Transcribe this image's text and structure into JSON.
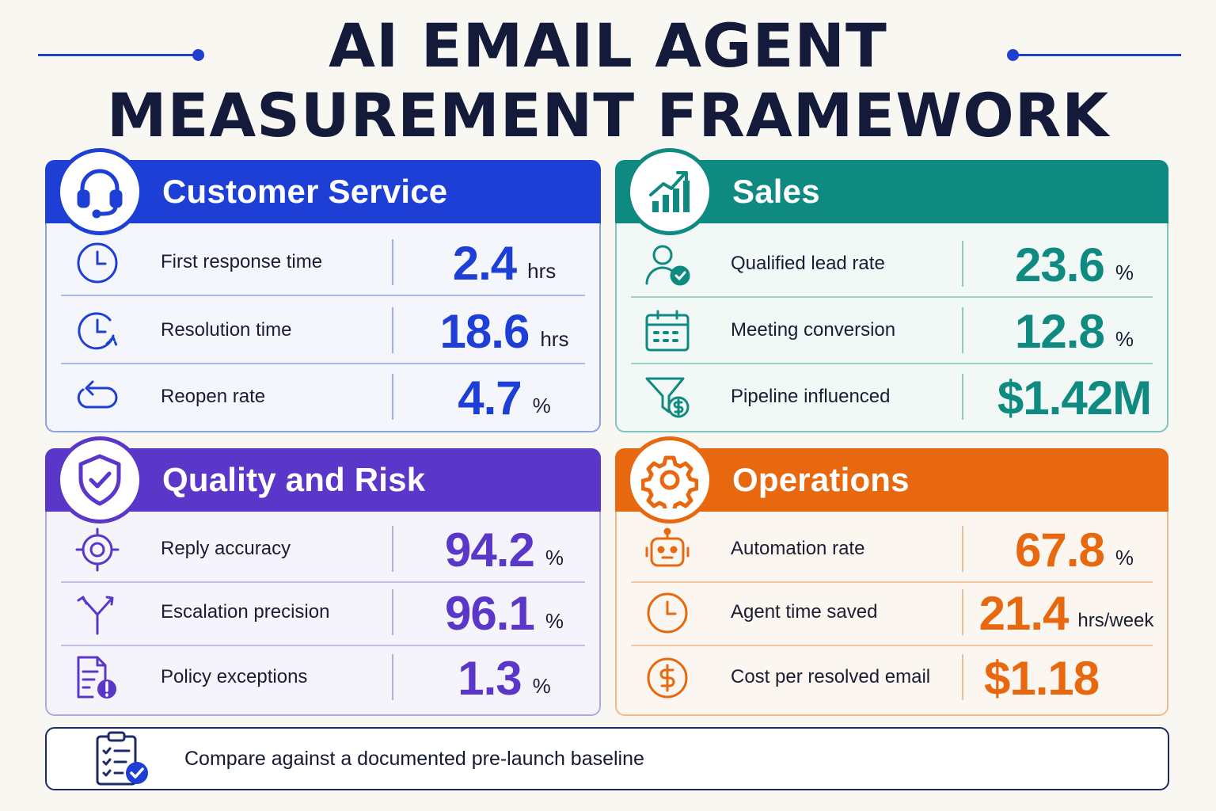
{
  "title": {
    "line1": "AI EMAIL AGENT",
    "line2": "MEASUREMENT FRAMEWORK"
  },
  "colors": {
    "customer_service": "#1e3fd6",
    "sales": "#0f8a80",
    "quality_risk": "#5a36c9",
    "operations": "#e8680f"
  },
  "panels": {
    "customer_service": {
      "title": "Customer Service",
      "icon": "headset-icon",
      "metrics": [
        {
          "label": "First response time",
          "value": "2.4",
          "unit": "hrs",
          "icon": "clock-icon"
        },
        {
          "label": "Resolution time",
          "value": "18.6",
          "unit": "hrs",
          "icon": "clock-arrow-icon"
        },
        {
          "label": "Reopen rate",
          "value": "4.7",
          "unit": "%",
          "icon": "reopen-arrow-icon"
        }
      ]
    },
    "sales": {
      "title": "Sales",
      "icon": "bar-chart-growth-icon",
      "metrics": [
        {
          "label": "Qualified lead rate",
          "value": "23.6",
          "unit": "%",
          "icon": "user-check-icon"
        },
        {
          "label": "Meeting conversion",
          "value": "12.8",
          "unit": "%",
          "icon": "calendar-icon"
        },
        {
          "label": "Pipeline influenced",
          "value": "$1.42M",
          "unit": "",
          "icon": "funnel-dollar-icon"
        }
      ]
    },
    "quality_risk": {
      "title": "Quality and Risk",
      "icon": "shield-check-icon",
      "metrics": [
        {
          "label": "Reply accuracy",
          "value": "94.2",
          "unit": "%",
          "icon": "target-icon"
        },
        {
          "label": "Escalation precision",
          "value": "96.1",
          "unit": "%",
          "icon": "split-arrow-icon"
        },
        {
          "label": "Policy exceptions",
          "value": "1.3",
          "unit": "%",
          "icon": "document-alert-icon"
        }
      ]
    },
    "operations": {
      "title": "Operations",
      "icon": "gear-icon",
      "metrics": [
        {
          "label": "Automation rate",
          "value": "67.8",
          "unit": "%",
          "icon": "robot-icon"
        },
        {
          "label": "Agent time saved",
          "value": "21.4",
          "unit": "hrs/week",
          "icon": "clock-icon"
        },
        {
          "label": "Cost per resolved email",
          "value": "$1.18",
          "unit": "",
          "icon": "dollar-coin-icon"
        }
      ]
    }
  },
  "footer": {
    "text": "Compare against a documented pre-launch baseline",
    "icon": "clipboard-check-icon"
  }
}
